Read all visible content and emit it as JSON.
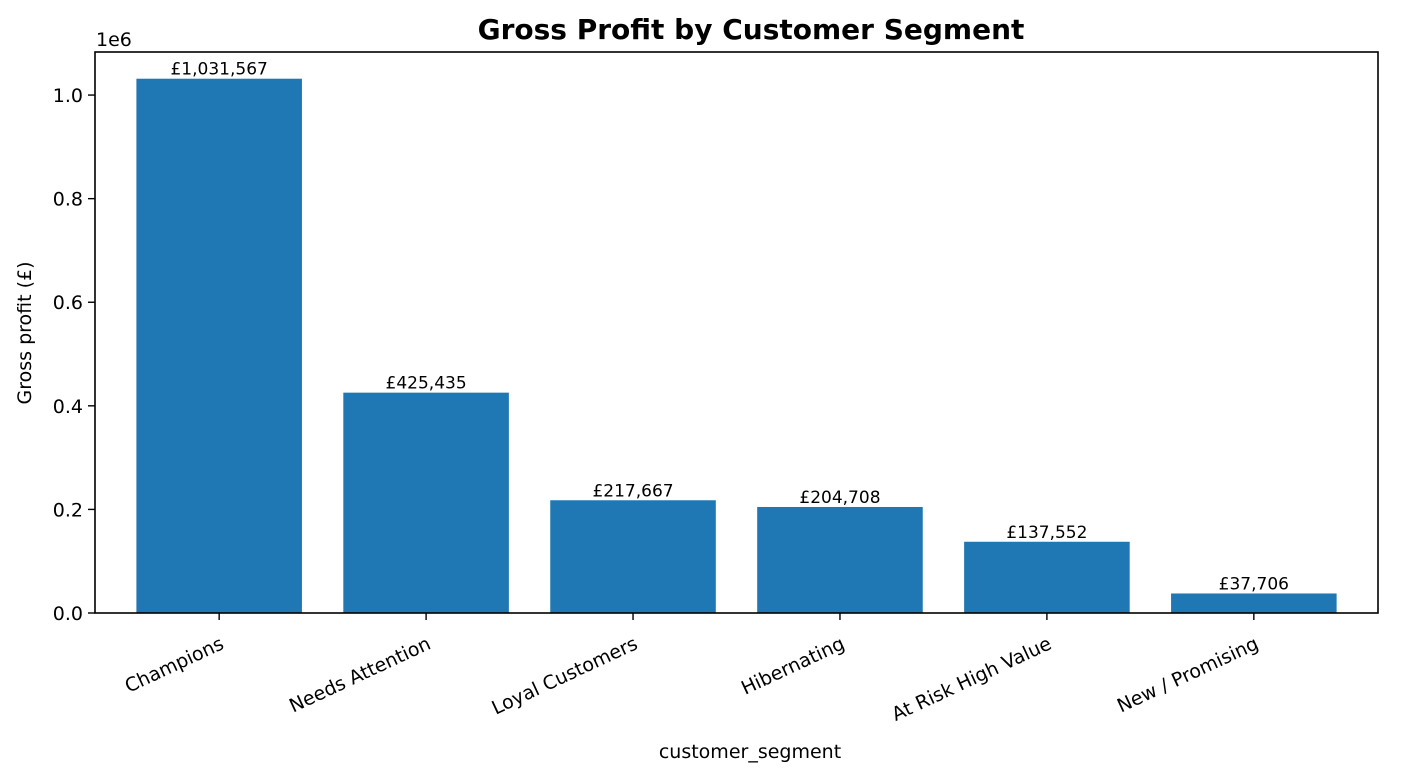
{
  "chart_data": {
    "type": "bar",
    "title": "Gross Profit by Customer Segment",
    "xlabel": "customer_segment",
    "ylabel": "Gross profit (£)",
    "offset_label": "1e6",
    "categories": [
      "Champions",
      "Needs Attention",
      "Loyal Customers",
      "Hibernating",
      "At Risk High Value",
      "New / Promising"
    ],
    "values": [
      1031567,
      425435,
      217667,
      204708,
      137552,
      37706
    ],
    "value_labels": [
      "£1,031,567",
      "£425,435",
      "£217,667",
      "£204,708",
      "£137,552",
      "£37,706"
    ],
    "y_ticks": [
      0,
      200000,
      400000,
      600000,
      800000,
      1000000
    ],
    "y_tick_labels": [
      "0.0",
      "0.2",
      "0.4",
      "0.6",
      "0.8",
      "1.0"
    ],
    "ylim": [
      0,
      1083145
    ],
    "bar_color": "#1f77b4",
    "grid": false,
    "legend": "none"
  }
}
